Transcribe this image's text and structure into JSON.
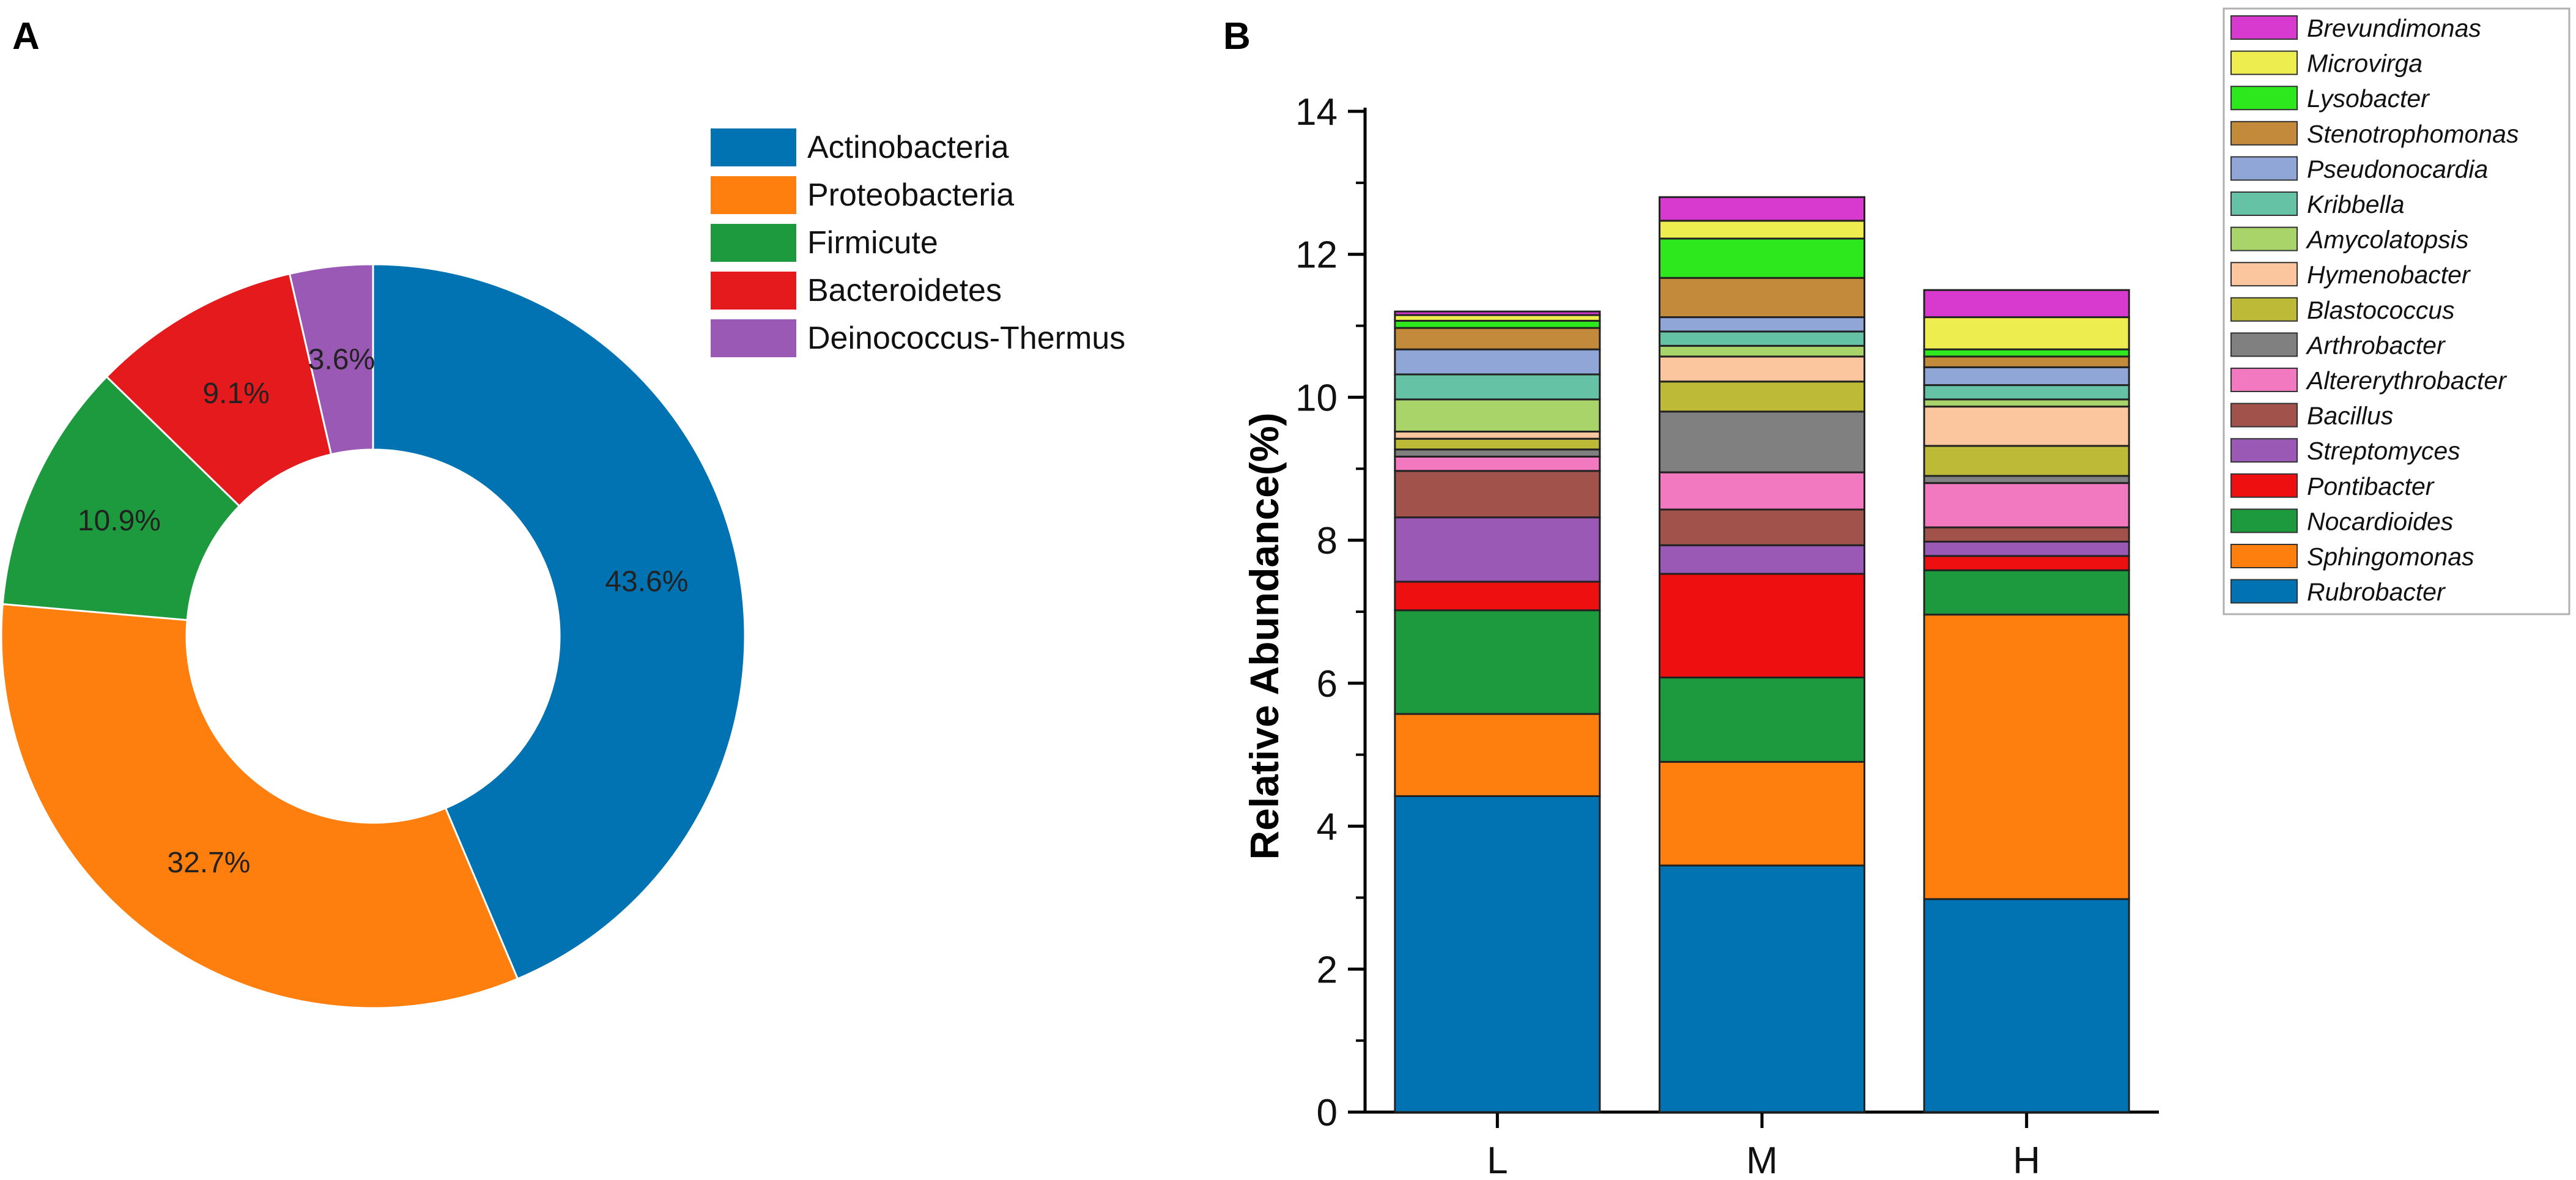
{
  "chart_data": [
    {
      "panel_label": "A",
      "type": "pie",
      "subtype": "donut",
      "legend_position": "right",
      "start_angle_deg": 0,
      "direction": "clockwise",
      "slices": [
        {
          "label": "Actinobacteria",
          "value": 43.6,
          "value_label": "43.6%",
          "color": "#0173B2"
        },
        {
          "label": "Proteobacteria",
          "value": 32.7,
          "value_label": "32.7%",
          "color": "#FF7F0E"
        },
        {
          "label": "Firmicute",
          "value": 10.9,
          "value_label": "10.9%",
          "color": "#1E9A3E"
        },
        {
          "label": "Bacteroidetes",
          "value": 9.1,
          "value_label": "9.1%",
          "color": "#E41A1C"
        },
        {
          "label": "Deinococcus-Thermus",
          "value": 3.6,
          "value_label": "3.6%",
          "color": "#9B59B6"
        }
      ]
    },
    {
      "panel_label": "B",
      "type": "bar",
      "stacked": true,
      "ylabel": "Relative Abundance(%)",
      "xlabel": "",
      "ylim": [
        0,
        14
      ],
      "yticks": [
        0,
        2,
        4,
        6,
        8,
        10,
        12,
        14
      ],
      "legend_position": "right",
      "categories": [
        "L",
        "M",
        "H"
      ],
      "series": [
        {
          "name": "Rubrobacter",
          "color": "#0173B2",
          "values": [
            4.42,
            3.45,
            2.98
          ]
        },
        {
          "name": "Sphingomonas",
          "color": "#FF7F0E",
          "values": [
            1.15,
            1.45,
            3.98
          ]
        },
        {
          "name": "Nocardioides",
          "color": "#1E9A3E",
          "values": [
            1.45,
            1.18,
            0.62
          ]
        },
        {
          "name": "Pontibacter",
          "color": "#EE1010",
          "values": [
            0.4,
            1.45,
            0.2
          ]
        },
        {
          "name": "Streptomyces",
          "color": "#9B59B6",
          "values": [
            0.9,
            0.4,
            0.2
          ]
        },
        {
          "name": "Bacillus",
          "color": "#A0524B",
          "values": [
            0.65,
            0.5,
            0.2
          ]
        },
        {
          "name": "Altererythrobacter",
          "color": "#F279BF",
          "values": [
            0.2,
            0.52,
            0.62
          ]
        },
        {
          "name": "Arthrobacter",
          "color": "#808080",
          "values": [
            0.1,
            0.85,
            0.1
          ]
        },
        {
          "name": "Blastococcus",
          "color": "#BDBA38",
          "values": [
            0.15,
            0.42,
            0.42
          ]
        },
        {
          "name": "Hymenobacter",
          "color": "#FBC59E",
          "values": [
            0.1,
            0.35,
            0.55
          ]
        },
        {
          "name": "Amycolatopsis",
          "color": "#A8D46A",
          "values": [
            0.45,
            0.15,
            0.1
          ]
        },
        {
          "name": "Kribbella",
          "color": "#66C2A5",
          "values": [
            0.35,
            0.2,
            0.2
          ]
        },
        {
          "name": "Pseudonocardia",
          "color": "#8FA6D6",
          "values": [
            0.35,
            0.2,
            0.25
          ]
        },
        {
          "name": "Stenotrophomonas",
          "color": "#C48A3C",
          "values": [
            0.3,
            0.55,
            0.15
          ]
        },
        {
          "name": "Lysobacter",
          "color": "#2EE81E",
          "values": [
            0.1,
            0.55,
            0.1
          ]
        },
        {
          "name": "Microvirga",
          "color": "#EDED4F",
          "values": [
            0.08,
            0.25,
            0.45
          ]
        },
        {
          "name": "Brevundimonas",
          "color": "#D83ACF",
          "values": [
            0.05,
            0.33,
            0.38
          ]
        }
      ]
    }
  ]
}
